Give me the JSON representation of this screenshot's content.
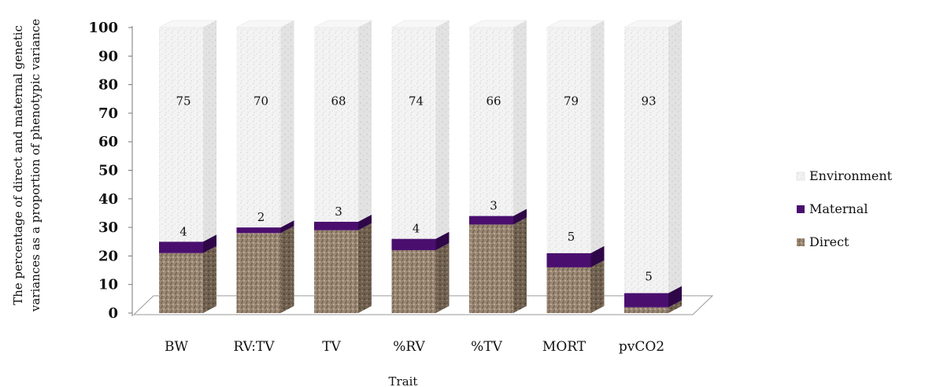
{
  "chart_data": {
    "type": "bar",
    "stacked": true,
    "three_d": true,
    "xlabel": "Trait",
    "ylabel_lines": [
      "The percentage of direct and maternal genetic",
      "variances as a proportion of phenotypic variance"
    ],
    "ylim": [
      0,
      100
    ],
    "yticks": [
      "0",
      "10",
      "20",
      "30",
      "40",
      "50",
      "60",
      "70",
      "80",
      "90",
      "100"
    ],
    "categories": [
      "BW",
      "RV:TV",
      "TV",
      "%RV",
      "%TV",
      "MORT",
      "pvCO2"
    ],
    "series": [
      {
        "name": "Direct",
        "values": [
          21,
          28,
          29,
          22,
          31,
          16,
          2
        ],
        "color": "#9c8a76",
        "labels": [
          "",
          "",
          "",
          "",
          "",
          "",
          ""
        ]
      },
      {
        "name": "Maternal",
        "values": [
          4,
          2,
          3,
          4,
          3,
          5,
          5
        ],
        "color": "#4a0f6e",
        "labels": [
          "4",
          "2",
          "3",
          "4",
          "3",
          "5",
          "5"
        ]
      },
      {
        "name": "Environment",
        "values": [
          75,
          70,
          68,
          74,
          66,
          79,
          93
        ],
        "color": "#f1f1f1",
        "labels": [
          "75",
          "70",
          "68",
          "74",
          "66",
          "79",
          "93"
        ]
      }
    ],
    "legend": {
      "position": "right",
      "entries": [
        "Environment",
        "Maternal",
        "Direct"
      ]
    },
    "grid": false
  }
}
